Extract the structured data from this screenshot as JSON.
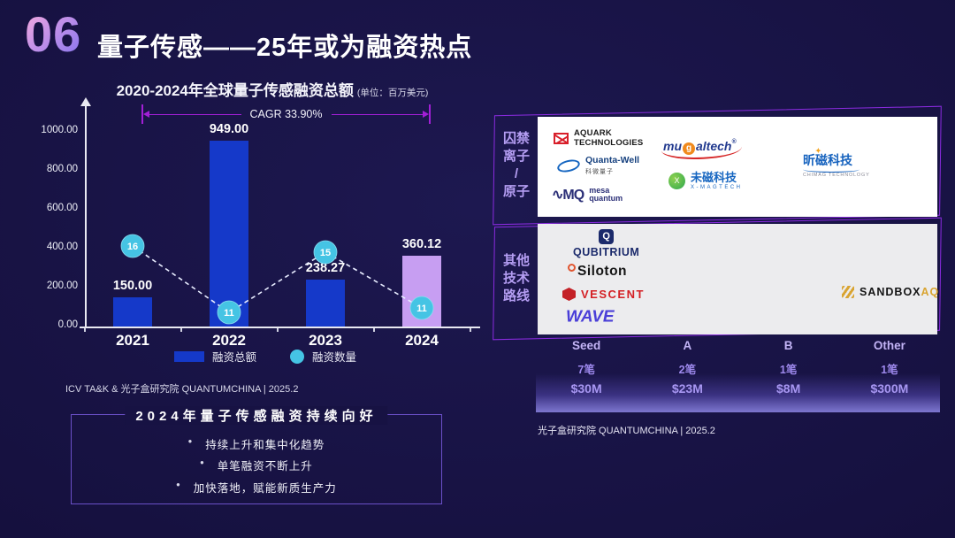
{
  "slide": {
    "number": "06",
    "title": "量子传感——25年或为融资热点"
  },
  "chart": {
    "title": "2020-2024年全球量子传感融资总额",
    "unit_note": "(单位：百万美元)",
    "cagr_label": "CAGR 33.90%",
    "y_ticks": [
      "1000.00",
      "800.00",
      "600.00",
      "400.00",
      "200.00",
      "0.00"
    ],
    "x_labels": [
      "2021",
      "2022",
      "2023",
      "2024"
    ],
    "legend": [
      {
        "label": "融资总额"
      },
      {
        "label": "融资数量"
      }
    ],
    "source": "ICV TA&K & 光子盒研究院 QUANTUMCHINA | 2025.2"
  },
  "chart_data": [
    {
      "type": "bar",
      "title": "2020-2024年全球量子传感融资总额",
      "unit": "百万美元",
      "categories": [
        "2021",
        "2022",
        "2023",
        "2024"
      ],
      "series": [
        {
          "name": "融资总额",
          "type": "bar",
          "values": [
            150.0,
            949.0,
            238.27,
            360.12
          ]
        },
        {
          "name": "融资数量",
          "type": "line",
          "values": [
            16,
            11,
            15,
            11
          ]
        }
      ],
      "annotations": [
        {
          "text": "CAGR 33.90%",
          "span": [
            "2021",
            "2024"
          ]
        }
      ],
      "ylim": [
        0,
        1000
      ],
      "y_tick_step": 200,
      "bar_colors": [
        "#1539c9",
        "#1539c9",
        "#1539c9",
        "#c79ef2"
      ],
      "line_color": "#45c4e4",
      "line_style": "dashed-white",
      "legend_position": "bottom",
      "grid": false
    },
    {
      "type": "table",
      "columns": [
        "Seed",
        "A",
        "B",
        "Other"
      ],
      "rows": [
        [
          "7笔",
          "2笔",
          "1笔",
          "1笔"
        ],
        [
          "$30M",
          "$23M",
          "$8M",
          "$300M"
        ]
      ]
    }
  ],
  "highlight_box": {
    "title": "2024年量子传感融资持续向好",
    "bullet": "•",
    "bullets": [
      "持续上升和集中化趋势",
      "单笔融资不断上升",
      "加快落地，赋能新质生产力"
    ]
  },
  "sections": [
    {
      "label": "囚禁离子/原子",
      "label_multiline": "囚禁\n离子\n/\n原子"
    },
    {
      "label": "其他技术路线",
      "label_multiline": "其他\n技术\n路线"
    }
  ],
  "logos_trapped": [
    {
      "name": "AQUARK",
      "name2": "TECHNOLOGIES"
    },
    {
      "pre": "mu",
      "mid": "g",
      "post": "altech",
      "reg": "®"
    },
    {
      "name": "Quanta-Well",
      "sub": "科微量子"
    },
    {
      "name": "昕磁科技",
      "sub": "CHIMAG TECHNOLOGY"
    },
    {
      "name": "未磁科技",
      "sub": "X-MAGTECH",
      "icon_letter": "X"
    },
    {
      "icon_text": "MQ",
      "name": "mesa",
      "sub": "quantum"
    }
  ],
  "logos_other": [
    {
      "icon_letter": "Q",
      "name": "QUBITRIUM"
    },
    {
      "name": "Siloton"
    },
    {
      "name": "VESCENT"
    },
    {
      "name": "WAVE"
    },
    {
      "name": "SANDBOX",
      "accent": "AQ"
    }
  ],
  "stage_table": {
    "columns": [
      {
        "stage": "Seed",
        "deals": "7笔",
        "amount": "$30M"
      },
      {
        "stage": "A",
        "deals": "2笔",
        "amount": "$23M"
      },
      {
        "stage": "B",
        "deals": "1笔",
        "amount": "$8M"
      },
      {
        "stage": "Other",
        "deals": "1笔",
        "amount": "$300M"
      }
    ]
  },
  "source_right": "光子盒研究院 QUANTUMCHINA | 2025.2",
  "colors": {
    "background": "#161140",
    "bar_blue": "#1539c9",
    "bar_2024_purple": "#c79ef2",
    "count_cyan": "#45c4e4",
    "cagr_magenta": "#a21fd6",
    "panel_outline_purple": "#8b2be0",
    "section_label_purple": "#b49df2",
    "table_text_purple": "#c3b4f6"
  }
}
